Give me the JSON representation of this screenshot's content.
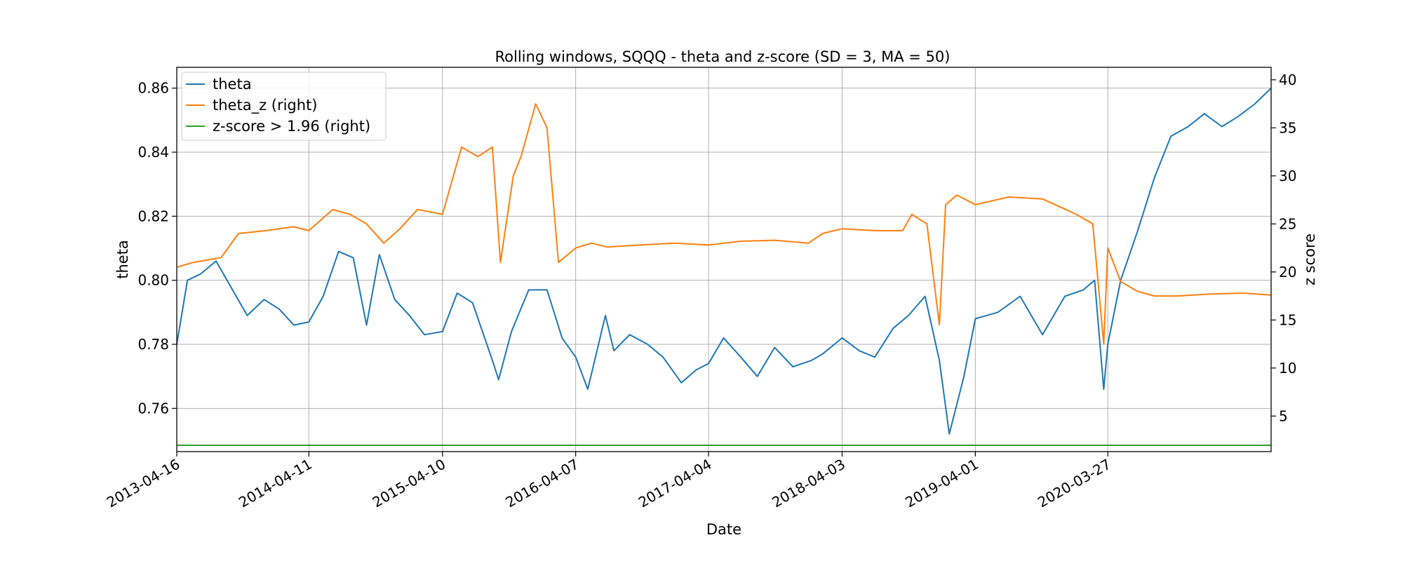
{
  "chart_data": {
    "type": "line",
    "title": "Rolling windows, SQQQ - theta and z-score (SD = 3, MA = 50)",
    "xlabel": "Date",
    "ylabel": "theta",
    "y2label": "z score",
    "x_range": [
      "2013-04-16",
      "2021-06-15"
    ],
    "ylim": [
      0.7465,
      0.8665
    ],
    "y2lim": [
      1.3,
      41.3
    ],
    "x_ticks": [
      "2013-04-16",
      "2014-04-11",
      "2015-04-10",
      "2016-04-07",
      "2017-04-04",
      "2018-04-03",
      "2019-04-01",
      "2020-03-27"
    ],
    "y_ticks": [
      "0.76",
      "0.78",
      "0.80",
      "0.82",
      "0.84",
      "0.86"
    ],
    "y2_ticks": [
      "5",
      "10",
      "15",
      "20",
      "25",
      "30",
      "35",
      "40"
    ],
    "grid": true,
    "legend": "top-left",
    "colors": {
      "theta": "#1f77b4",
      "theta_z": "#ff7f0e",
      "threshold": "#2ca02c"
    },
    "series": [
      {
        "name": "theta",
        "axis": "left",
        "x": [
          "2013-04-16",
          "2013-05-15",
          "2013-06-20",
          "2013-08-01",
          "2013-09-15",
          "2013-10-25",
          "2013-12-10",
          "2014-01-20",
          "2014-03-01",
          "2014-04-11",
          "2014-05-20",
          "2014-07-01",
          "2014-08-10",
          "2014-09-15",
          "2014-10-20",
          "2014-12-01",
          "2015-01-10",
          "2015-02-20",
          "2015-04-10",
          "2015-05-20",
          "2015-07-01",
          "2015-08-24",
          "2015-09-10",
          "2015-10-15",
          "2015-12-01",
          "2016-01-20",
          "2016-03-01",
          "2016-04-07",
          "2016-05-10",
          "2016-06-27",
          "2016-07-20",
          "2016-09-01",
          "2016-10-20",
          "2016-12-01",
          "2017-01-20",
          "2017-03-01",
          "2017-04-04",
          "2017-05-15",
          "2017-07-01",
          "2017-08-15",
          "2017-10-01",
          "2017-11-20",
          "2018-01-10",
          "2018-02-09",
          "2018-04-03",
          "2018-05-20",
          "2018-07-01",
          "2018-08-20",
          "2018-10-01",
          "2018-11-15",
          "2018-12-24",
          "2019-01-20",
          "2019-03-01",
          "2019-04-01",
          "2019-06-01",
          "2019-08-01",
          "2019-10-01",
          "2019-12-01",
          "2020-01-20",
          "2020-02-20",
          "2020-03-16",
          "2020-03-27",
          "2020-05-01",
          "2020-06-15",
          "2020-08-01",
          "2020-09-15",
          "2020-11-01",
          "2020-12-15",
          "2021-02-01",
          "2021-03-15",
          "2021-05-01",
          "2021-06-15"
        ],
        "values": [
          0.78,
          0.8,
          0.802,
          0.806,
          0.797,
          0.789,
          0.794,
          0.791,
          0.786,
          0.787,
          0.795,
          0.809,
          0.807,
          0.786,
          0.808,
          0.794,
          0.789,
          0.783,
          0.784,
          0.796,
          0.793,
          0.775,
          0.769,
          0.784,
          0.797,
          0.797,
          0.782,
          0.776,
          0.766,
          0.789,
          0.778,
          0.783,
          0.78,
          0.776,
          0.768,
          0.772,
          0.774,
          0.782,
          0.776,
          0.77,
          0.779,
          0.773,
          0.775,
          0.777,
          0.782,
          0.778,
          0.776,
          0.785,
          0.789,
          0.795,
          0.775,
          0.752,
          0.77,
          0.788,
          0.79,
          0.795,
          0.783,
          0.795,
          0.797,
          0.8,
          0.766,
          0.78,
          0.8,
          0.815,
          0.832,
          0.845,
          0.848,
          0.852,
          0.848,
          0.851,
          0.855,
          0.86
        ]
      },
      {
        "name": "theta_z (right)",
        "axis": "right",
        "x": [
          "2013-04-16",
          "2013-06-01",
          "2013-08-15",
          "2013-10-01",
          "2013-12-15",
          "2014-03-01",
          "2014-04-11",
          "2014-06-15",
          "2014-08-01",
          "2014-09-15",
          "2014-11-01",
          "2014-12-15",
          "2015-02-01",
          "2015-04-10",
          "2015-06-01",
          "2015-07-15",
          "2015-08-24",
          "2015-09-15",
          "2015-10-20",
          "2015-11-10",
          "2015-12-20",
          "2016-01-20",
          "2016-02-20",
          "2016-04-07",
          "2016-05-20",
          "2016-07-01",
          "2016-10-01",
          "2017-01-01",
          "2017-04-04",
          "2017-07-01",
          "2017-10-01",
          "2018-01-01",
          "2018-02-09",
          "2018-04-03",
          "2018-07-01",
          "2018-09-15",
          "2018-10-10",
          "2018-11-20",
          "2018-12-24",
          "2019-01-10",
          "2019-02-10",
          "2019-04-01",
          "2019-07-01",
          "2019-10-01",
          "2020-01-01",
          "2020-02-15",
          "2020-03-16",
          "2020-03-27",
          "2020-05-01",
          "2020-06-15",
          "2020-08-01",
          "2020-10-01",
          "2021-01-01",
          "2021-04-01",
          "2021-06-15"
        ],
        "values": [
          20.5,
          21.0,
          21.5,
          24.0,
          24.3,
          24.7,
          24.3,
          26.5,
          26.0,
          25.0,
          23.0,
          24.5,
          26.5,
          26.0,
          33.0,
          32.0,
          33.0,
          21.0,
          30.0,
          32.0,
          37.5,
          35.0,
          21.0,
          22.5,
          23.0,
          22.6,
          22.8,
          23.0,
          22.8,
          23.2,
          23.3,
          23.0,
          24.0,
          24.5,
          24.3,
          24.3,
          26.0,
          25.0,
          14.5,
          27.0,
          28.0,
          27.0,
          27.8,
          27.6,
          26.0,
          25.0,
          12.5,
          22.5,
          19.0,
          18.0,
          17.5,
          17.5,
          17.7,
          17.8,
          17.6
        ]
      },
      {
        "name": "z-score > 1.96 (right)",
        "axis": "right",
        "x": [
          "2013-04-16",
          "2021-06-15"
        ],
        "values": [
          1.96,
          1.96
        ]
      }
    ]
  }
}
